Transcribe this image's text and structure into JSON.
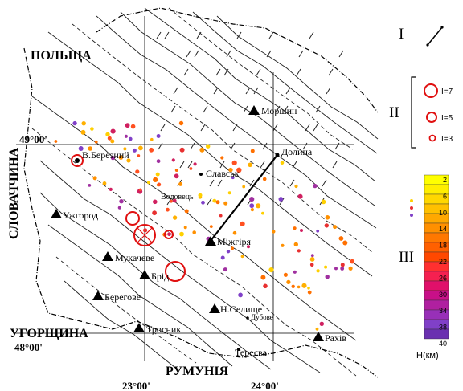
{
  "countries": {
    "poland": "ПОЛЬЩА",
    "slovakia": "СЛОВАЧЧИНА",
    "hungary": "УГОРЩИНА",
    "romania": "РУМУНІЯ"
  },
  "coordinates": {
    "lat_49": "49°00'",
    "lat_48": "48°00'",
    "lon_23": "23°00'",
    "lon_24": "24°00'"
  },
  "towns": {
    "morshyn": "Моршин",
    "dolyna": "Долина",
    "bereznyi": "В.Березний",
    "slavske": "Славськ",
    "volovets": "Воловець",
    "uzhhorod": "Ужгород",
    "mizhhiria": "Міжгіря",
    "mukacheve": "Мукачеве",
    "bushtyno": "Брід",
    "berehove": "Берегове",
    "nsedlo": "Н.Селище",
    "dubove": "Дубове",
    "tyachiv": "Тросник",
    "rakhiv": "Рахів",
    "teresva": "Тересва"
  },
  "legend": {
    "section_I": "I",
    "section_II": "II",
    "section_III": "III",
    "intensity": [
      "I=7",
      "I=5",
      "I=3"
    ],
    "depth_scale": [
      "2",
      "6",
      "10",
      "14",
      "18",
      "22",
      "26",
      "30",
      "34",
      "38",
      "40"
    ],
    "depth_unit": "H(км)",
    "depth_colors": [
      "#ffff00",
      "#ffee00",
      "#ffd700",
      "#ffc000",
      "#ffa800",
      "#ff9000",
      "#ff7800",
      "#ff6000",
      "#ff4800",
      "#ff3030",
      "#f52050",
      "#e0106a",
      "#c81088",
      "#b020a0",
      "#9830b8",
      "#8040c8",
      "#6a30b0"
    ]
  }
}
